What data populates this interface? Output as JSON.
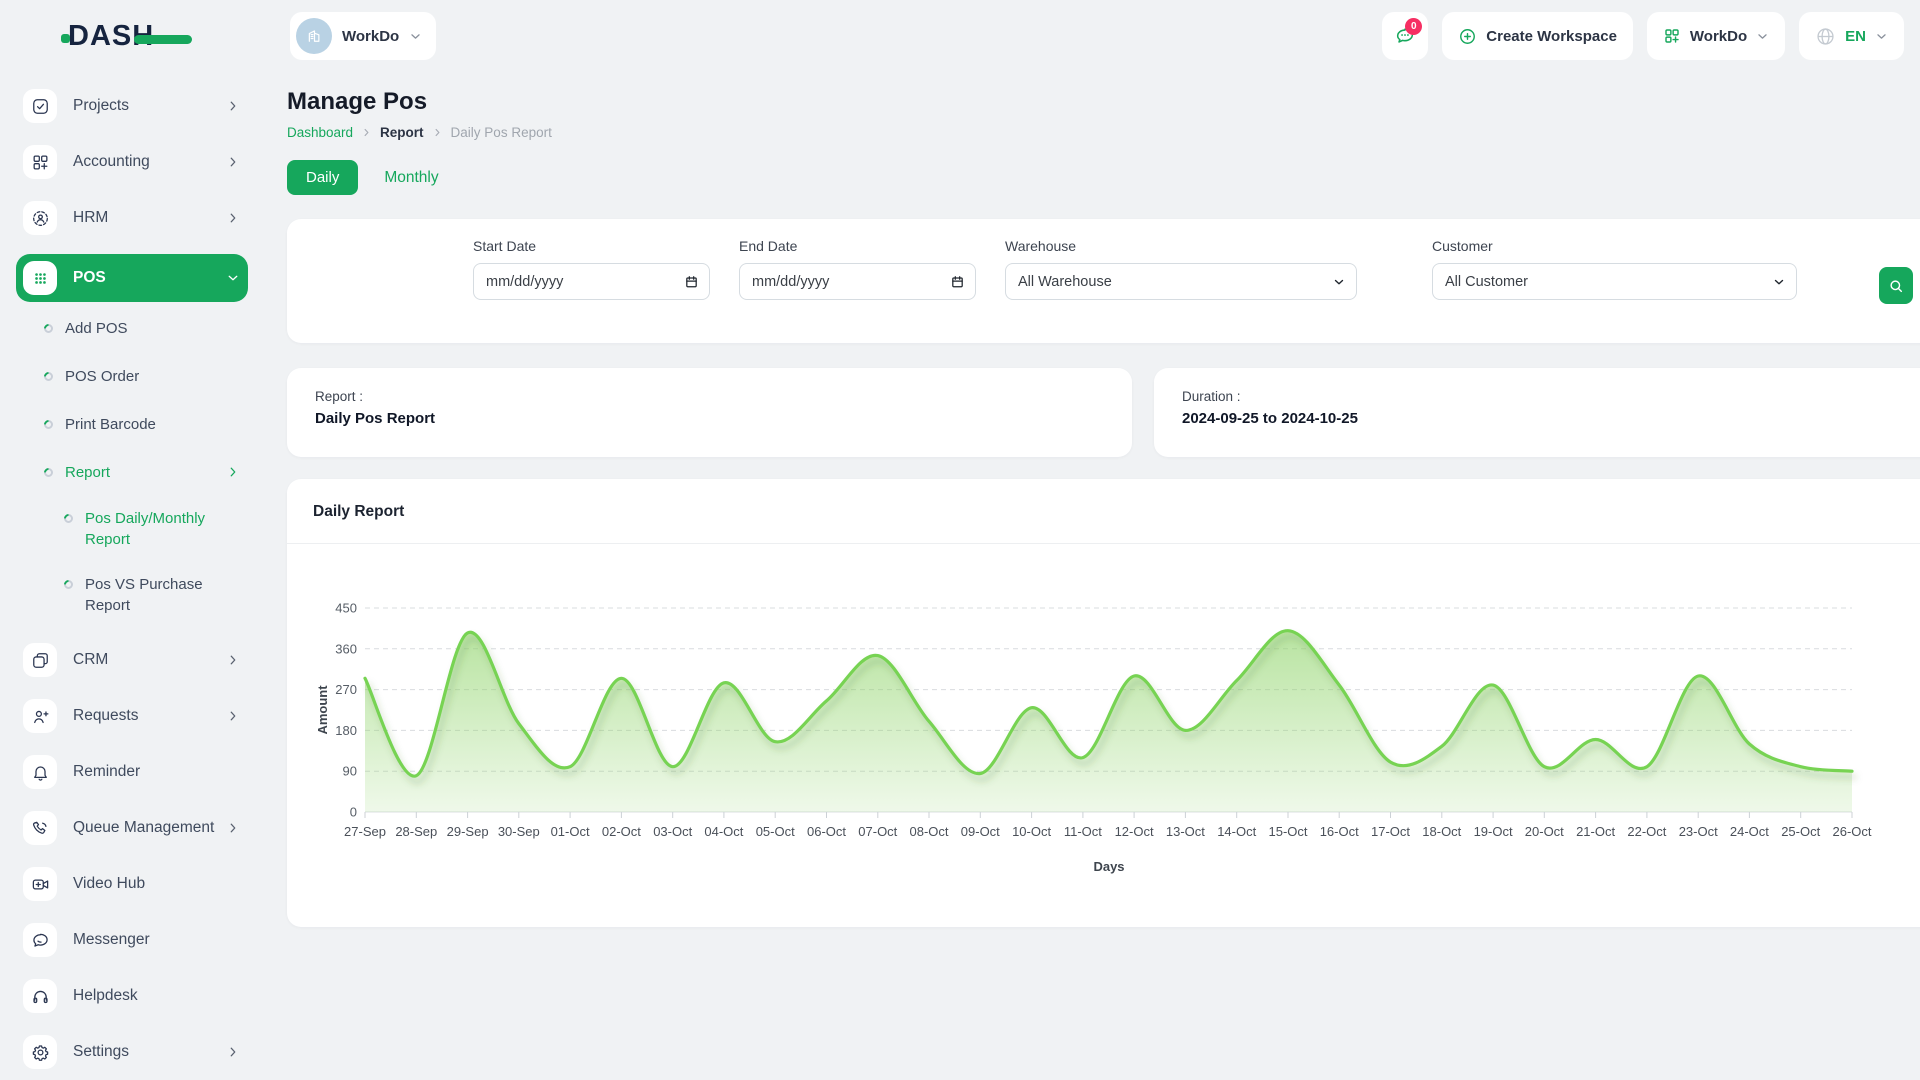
{
  "brand": {
    "logo_text": "DASH"
  },
  "topbar": {
    "workspace_switcher": {
      "label": "WorkDo"
    },
    "chat": {
      "badge": "0"
    },
    "create_workspace_label": "Create Workspace",
    "workspace_dropdown_label": "WorkDo",
    "language": {
      "code": "EN"
    }
  },
  "sidebar": {
    "items": [
      {
        "type": "top",
        "icon": "checkbox-icon",
        "label": "Projects",
        "chevron": "right"
      },
      {
        "type": "top",
        "icon": "modules-icon",
        "label": "Accounting",
        "chevron": "right"
      },
      {
        "type": "top",
        "icon": "user-circle-icon",
        "label": "HRM",
        "chevron": "right"
      },
      {
        "type": "top",
        "icon": "dots-grid-icon",
        "label": "POS",
        "chevron": "down",
        "active": true
      },
      {
        "type": "sub",
        "label": "Add POS"
      },
      {
        "type": "sub",
        "label": "POS Order"
      },
      {
        "type": "sub",
        "label": "Print Barcode"
      },
      {
        "type": "sub",
        "label": "Report",
        "chevron": "right",
        "active": true
      },
      {
        "type": "subsub",
        "label": "Pos Daily/Monthly Report",
        "active": true
      },
      {
        "type": "subsub",
        "label": "Pos VS Purchase Report"
      },
      {
        "type": "top",
        "icon": "crm-icon",
        "label": "CRM",
        "chevron": "right"
      },
      {
        "type": "top",
        "icon": "user-plus-icon",
        "label": "Requests",
        "chevron": "right"
      },
      {
        "type": "top",
        "icon": "bell-icon",
        "label": "Reminder"
      },
      {
        "type": "top",
        "icon": "phone-icon",
        "label": "Queue Management",
        "chevron": "right"
      },
      {
        "type": "top",
        "icon": "video-icon",
        "label": "Video Hub"
      },
      {
        "type": "top",
        "icon": "chat-bubble-icon",
        "label": "Messenger"
      },
      {
        "type": "top",
        "icon": "headset-icon",
        "label": "Helpdesk"
      },
      {
        "type": "top",
        "icon": "gear-icon",
        "label": "Settings",
        "chevron": "right"
      }
    ]
  },
  "page": {
    "title": "Manage Pos",
    "breadcrumb": [
      "Dashboard",
      "Report",
      "Daily Pos Report"
    ],
    "tabs": {
      "daily": "Daily",
      "monthly": "Monthly"
    }
  },
  "filters": {
    "start_date": {
      "label": "Start Date",
      "placeholder": "mm/dd/yyyy"
    },
    "end_date": {
      "label": "End Date",
      "placeholder": "mm/dd/yyyy"
    },
    "warehouse": {
      "label": "Warehouse",
      "value": "All Warehouse"
    },
    "customer": {
      "label": "Customer",
      "value": "All Customer"
    }
  },
  "summary": {
    "report_label": "Report :",
    "report_value": "Daily Pos Report",
    "duration_label": "Duration :",
    "duration_value": "2024-09-25 to 2024-10-25"
  },
  "chart_card": {
    "title": "Daily Report"
  },
  "chart_data": {
    "type": "area",
    "title": "Daily Report",
    "xlabel": "Days",
    "ylabel": "Amount",
    "ylim": [
      0,
      450
    ],
    "yticks": [
      0,
      90,
      180,
      270,
      360,
      450
    ],
    "grid": "dashed-horizontal",
    "legend": "none",
    "line_color": "#77d353",
    "fill": "green-gradient",
    "categories": [
      "27-Sep",
      "28-Sep",
      "29-Sep",
      "30-Sep",
      "01-Oct",
      "02-Oct",
      "03-Oct",
      "04-Oct",
      "05-Oct",
      "06-Oct",
      "07-Oct",
      "08-Oct",
      "09-Oct",
      "10-Oct",
      "11-Oct",
      "12-Oct",
      "13-Oct",
      "14-Oct",
      "15-Oct",
      "16-Oct",
      "17-Oct",
      "18-Oct",
      "19-Oct",
      "20-Oct",
      "21-Oct",
      "22-Oct",
      "23-Oct",
      "24-Oct",
      "25-Oct",
      "26-Oct"
    ],
    "values": [
      295,
      80,
      395,
      195,
      100,
      295,
      100,
      285,
      155,
      245,
      345,
      200,
      85,
      230,
      120,
      300,
      180,
      290,
      400,
      280,
      110,
      145,
      280,
      100,
      160,
      100,
      300,
      150,
      100,
      90
    ]
  },
  "colors": {
    "accent_green": "#16a75c",
    "chart_line": "#77d353",
    "danger_pink": "#f62f63",
    "page_bg": "#f0f2f4"
  }
}
